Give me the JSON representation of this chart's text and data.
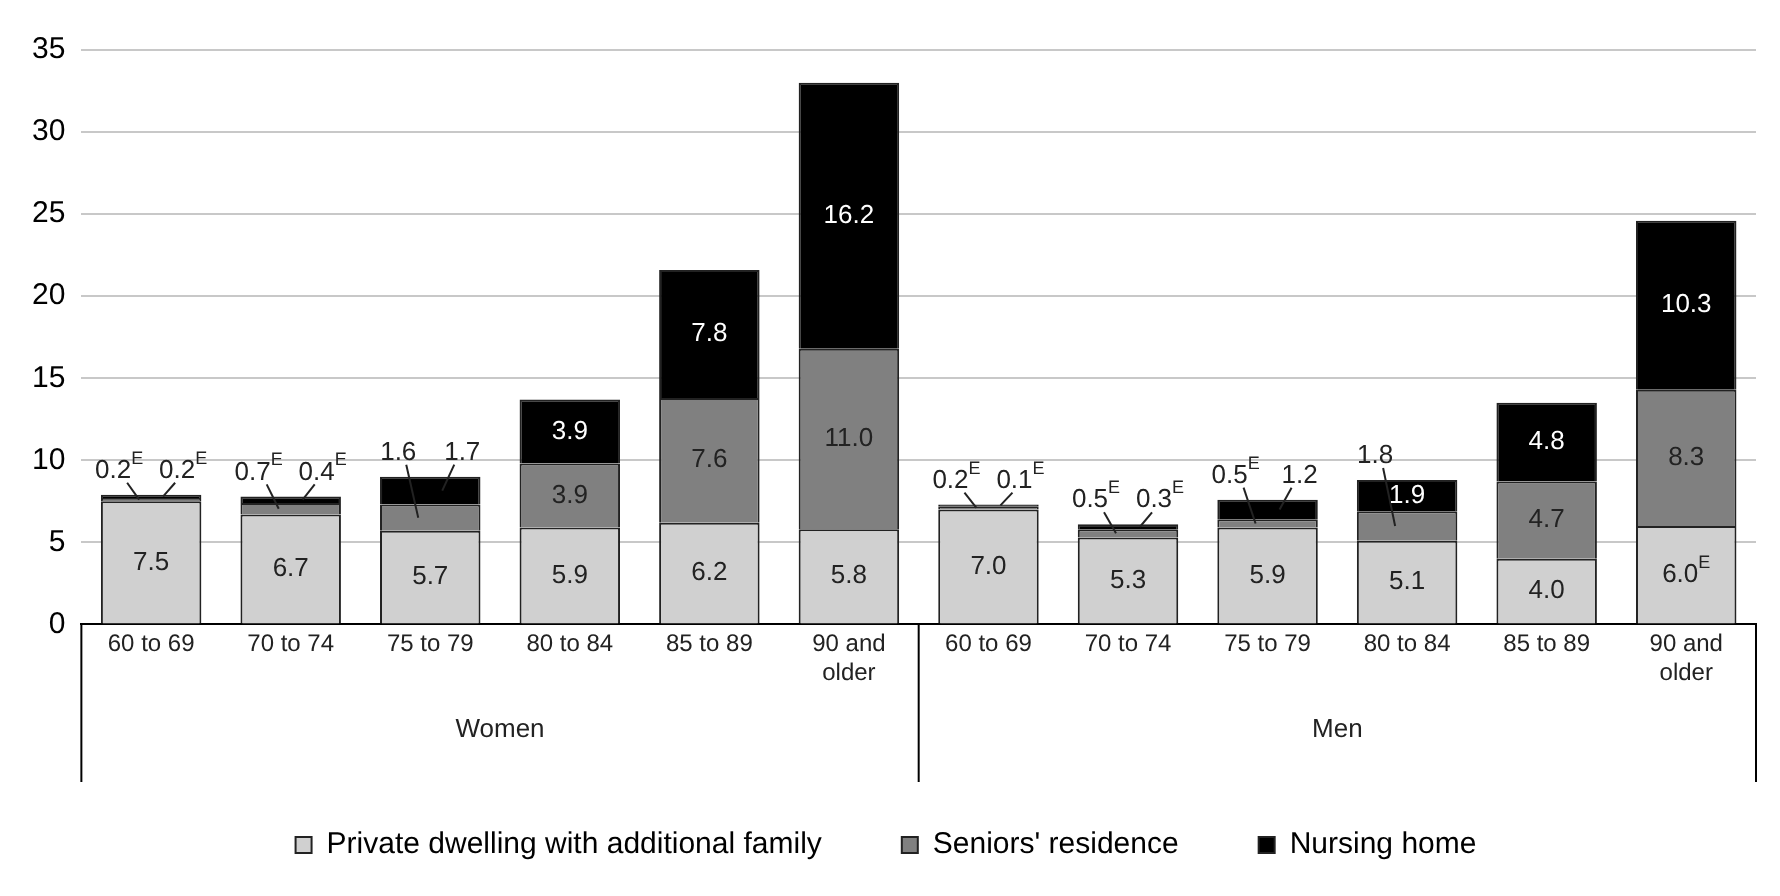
{
  "chart_data": {
    "type": "bar",
    "stacked": true,
    "categories": [
      "60 to 69",
      "70 to 74",
      "75 to 79",
      "80 to 84",
      "85 to 89",
      "90 and older",
      "60 to 69",
      "70 to 74",
      "75 to 79",
      "80 to 84",
      "85 to 89",
      "90 and older"
    ],
    "annotations": [
      "Women",
      "Men"
    ],
    "series": [
      {
        "name": "Private dwelling with additional family",
        "color": "#d0d0d0",
        "values": [
          7.5,
          6.7,
          5.7,
          5.9,
          6.2,
          5.8,
          7.0,
          5.3,
          5.9,
          5.1,
          4.0,
          6.0
        ],
        "value_labels": [
          "7.5",
          "6.7",
          "5.7",
          "5.9",
          "6.2",
          "5.8",
          "7.0",
          "5.3",
          "5.9",
          "5.1",
          "4.0",
          "6.0$^{E}$"
        ]
      },
      {
        "name": "Seniors' residence",
        "color": "#808080",
        "values": [
          0.2,
          0.7,
          1.6,
          3.9,
          7.6,
          11.0,
          0.2,
          0.5,
          0.5,
          1.8,
          4.7,
          8.3
        ],
        "value_labels": [
          "0.2$^{E}$",
          "0.7$^{E}$",
          "1.6",
          "3.9",
          "7.6",
          "11.0",
          "0.2$^{E}$",
          "0.5$^{E}$",
          "0.5$^{E}$",
          "1.8",
          "4.7",
          "8.3"
        ]
      },
      {
        "name": "Nursing home",
        "color": "#000000",
        "values": [
          0.2,
          0.4,
          1.7,
          3.9,
          7.8,
          16.2,
          0.1,
          0.3,
          1.2,
          1.9,
          4.8,
          10.3
        ],
        "value_labels": [
          "0.2$^{E}$",
          "0.4$^{E}$",
          "1.7",
          "3.9",
          "7.8",
          "16.2",
          "0.1$^{E}$",
          "0.3$^{E}$",
          "1.2",
          "1.9",
          "4.8",
          "10.3"
        ]
      }
    ],
    "ylim": [
      0,
      35
    ],
    "yticks": [
      0,
      5,
      10,
      15,
      20,
      25,
      30,
      35
    ],
    "grid": "y",
    "legend": "bottom"
  }
}
